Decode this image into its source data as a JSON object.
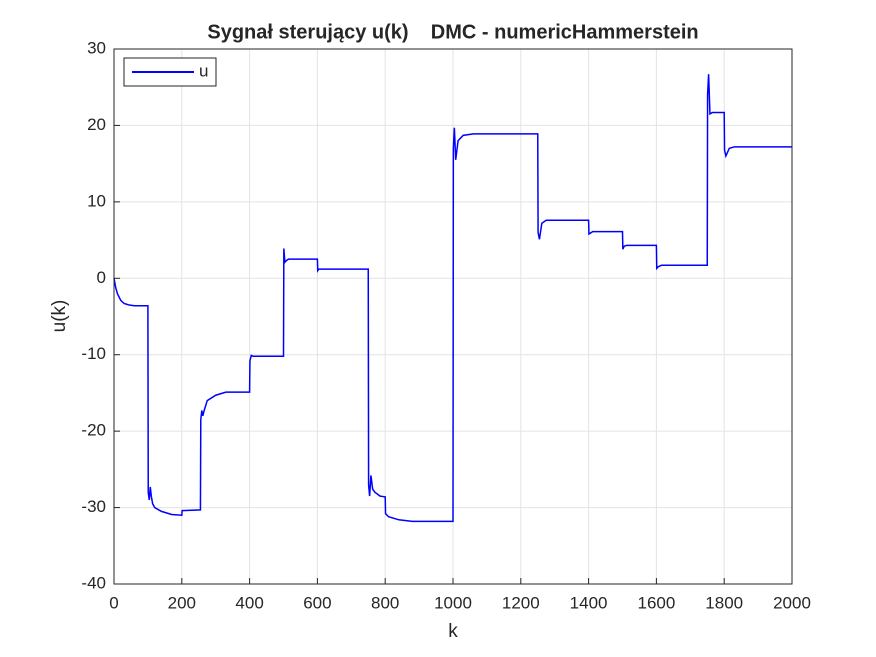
{
  "chart_data": {
    "type": "line",
    "title": "Sygnał sterujący u(k)    DMC - numericHammerstein",
    "x_label": "k",
    "y_label": "u(k)",
    "xlim": [
      0,
      2000
    ],
    "xticks": [
      0,
      200,
      400,
      600,
      800,
      1000,
      1200,
      1400,
      1600,
      1800,
      2000
    ],
    "ylim": [
      -40,
      30
    ],
    "yticks": [
      -40,
      -30,
      -20,
      -10,
      0,
      10,
      20,
      30
    ],
    "grid": true,
    "legend": "upper-left",
    "x": [
      0,
      5,
      10,
      20,
      30,
      45,
      60,
      80,
      100,
      101,
      104,
      107,
      110,
      114,
      120,
      140,
      170,
      200,
      201,
      255,
      256,
      259,
      262,
      266,
      275,
      300,
      330,
      400,
      401,
      405,
      410,
      500,
      501,
      504,
      508,
      515,
      600,
      601,
      604,
      750,
      751,
      754,
      758,
      763,
      770,
      785,
      800,
      801,
      810,
      840,
      880,
      1000,
      1001,
      1004,
      1008,
      1015,
      1030,
      1060,
      1250,
      1251,
      1255,
      1262,
      1275,
      1400,
      1401,
      1405,
      1412,
      1500,
      1501,
      1505,
      1512,
      1600,
      1601,
      1605,
      1615,
      1750,
      1751,
      1754,
      1758,
      1765,
      1800,
      1801,
      1805,
      1815,
      1830,
      2000
    ],
    "series": [
      {
        "name": "u",
        "color": "#0000ff",
        "values": [
          0,
          -1.2,
          -2,
          -2.9,
          -3.3,
          -3.5,
          -3.6,
          -3.6,
          -3.6,
          -28,
          -29,
          -27.3,
          -28.5,
          -29.5,
          -30,
          -30.5,
          -30.9,
          -31,
          -30.4,
          -30.3,
          -18.5,
          -17.3,
          -18,
          -17.3,
          -16,
          -15.3,
          -14.9,
          -14.9,
          -10.8,
          -10.1,
          -10.2,
          -10.2,
          3.9,
          2.1,
          2.3,
          2.5,
          2.5,
          1,
          1.2,
          1.2,
          -27,
          -28.5,
          -25.8,
          -27.6,
          -28,
          -28.5,
          -28.6,
          -30.8,
          -31.2,
          -31.6,
          -31.8,
          -31.8,
          17,
          19.7,
          15.5,
          18,
          18.7,
          18.9,
          18.9,
          6,
          5.1,
          7.2,
          7.6,
          7.6,
          5.8,
          5.9,
          6.1,
          6.1,
          3.8,
          4.2,
          4.3,
          4.3,
          1.3,
          1.5,
          1.7,
          1.7,
          24,
          26.7,
          21.5,
          21.7,
          21.7,
          16.8,
          16,
          17,
          17.2,
          17.2
        ]
      }
    ]
  }
}
